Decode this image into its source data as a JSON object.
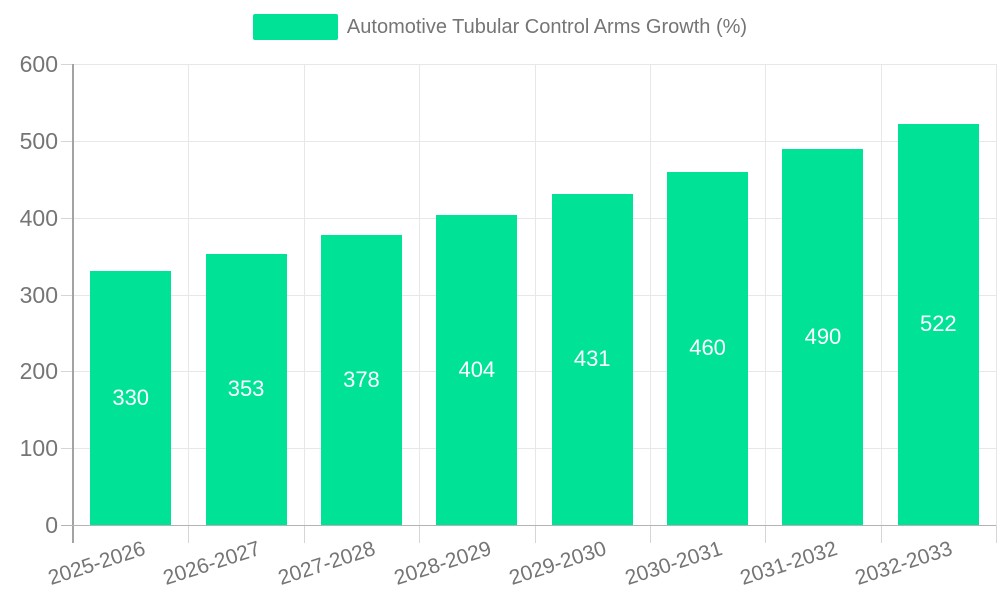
{
  "chart_data": {
    "type": "bar",
    "title": "Automotive Tubular Control Arms Growth (%)",
    "categories": [
      "2025-2026",
      "2026-2027",
      "2027-2028",
      "2028-2029",
      "2029-2030",
      "2030-2031",
      "2031-2032",
      "2032-2033"
    ],
    "values": [
      330,
      353,
      378,
      404,
      431,
      460,
      490,
      522
    ],
    "xlabel": "",
    "ylabel": "",
    "ylim": [
      0,
      600
    ],
    "ytick_step": 100,
    "ytick_labels": [
      "0",
      "100",
      "200",
      "300",
      "400",
      "500",
      "600"
    ],
    "grid": true,
    "legend_position": "top",
    "bar_color": "#00E396",
    "bar_label_color": "#ffffff",
    "axis_text_color": "#757575"
  }
}
